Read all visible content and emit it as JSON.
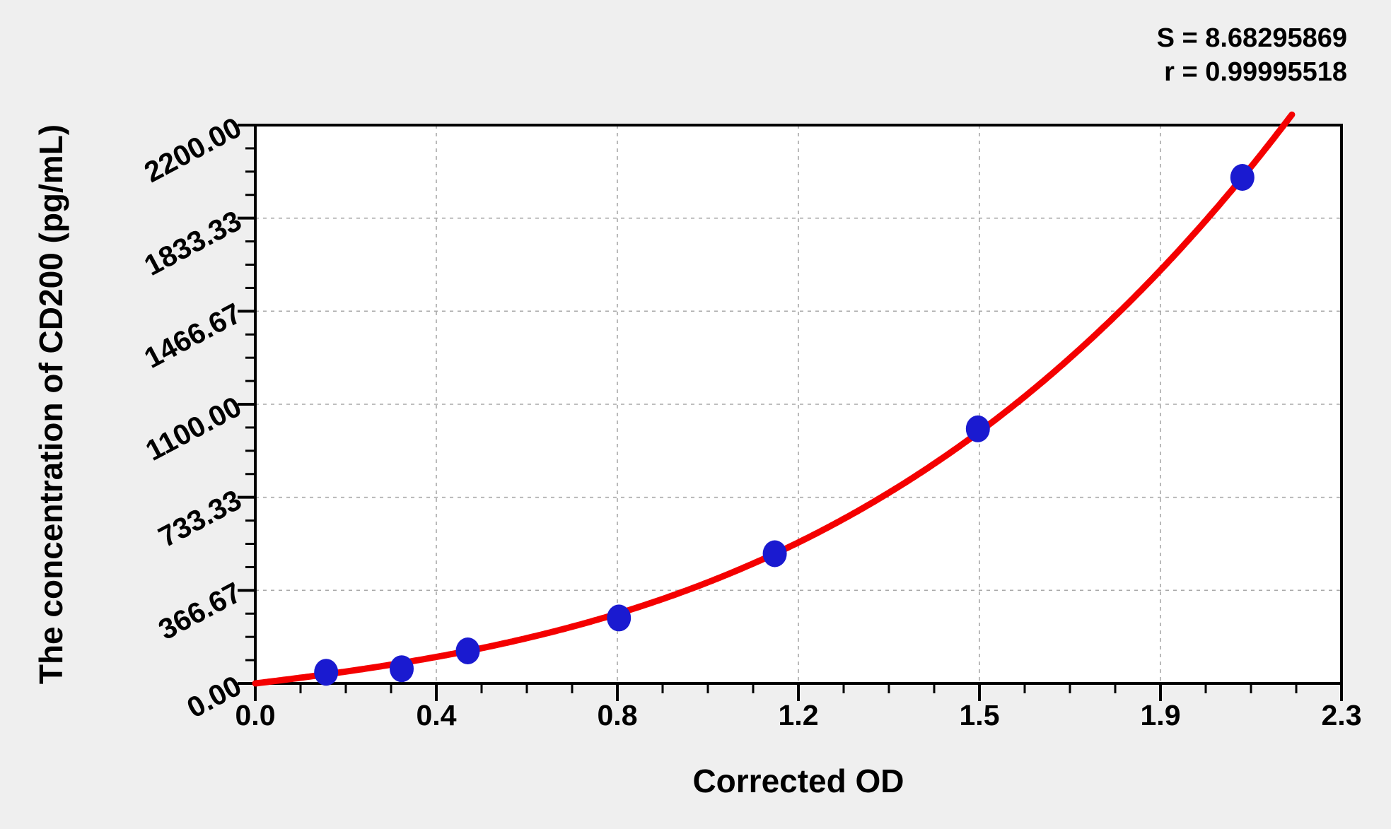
{
  "annotation": {
    "s_line": "S = 8.68295869",
    "r_line": "r = 0.99995518"
  },
  "chart_data": {
    "type": "scatter",
    "title": "",
    "xlabel": "Corrected OD",
    "ylabel": "The concentration of CD200 (pg/mL)",
    "xlim": [
      0,
      2.3
    ],
    "ylim": [
      0,
      2200
    ],
    "x_tick_labels": [
      "0.0",
      "0.4",
      "0.8",
      "1.2",
      "1.5",
      "1.9",
      "2.3"
    ],
    "y_tick_labels": [
      "2200.00",
      "1833.33",
      "1466.67",
      "1100.00",
      "733.33",
      "366.67",
      "0.00"
    ],
    "minor_ticks_per_interval": 3,
    "grid": "dashed gray lines at interior major ticks",
    "legend_position": "none",
    "points": [
      {
        "x": 0.15,
        "y": 44
      },
      {
        "x": 0.31,
        "y": 58
      },
      {
        "x": 0.45,
        "y": 128
      },
      {
        "x": 0.77,
        "y": 258
      },
      {
        "x": 1.1,
        "y": 511
      },
      {
        "x": 1.53,
        "y": 1003
      },
      {
        "x": 2.09,
        "y": 1994
      }
    ],
    "curve": {
      "description": "red standard-curve fit through points",
      "coefficients": [
        0,
        225.3,
        71.7,
        132.5
      ],
      "S": "8.68295869",
      "r": "0.99995518"
    },
    "colors": {
      "curve": "#f40000",
      "points": "#1a1ad0",
      "grid": "#a9a9a9",
      "axis": "#000000",
      "background": "#efefef",
      "plot_bg": "#ffffff"
    }
  }
}
